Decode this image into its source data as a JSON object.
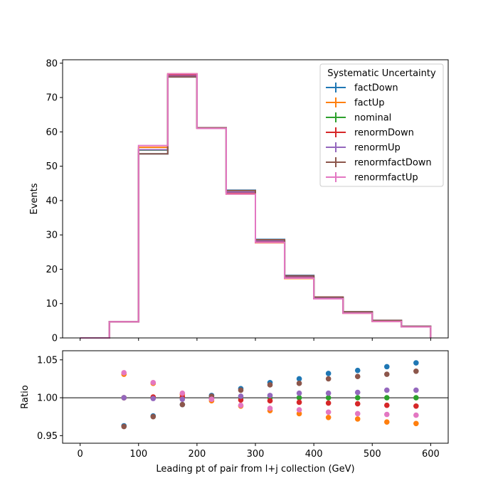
{
  "chart_data": [
    {
      "type": "step",
      "panel": "main",
      "xlabel": "",
      "ylabel": "Events",
      "xlim": [
        -30,
        630
      ],
      "ylim": [
        0,
        81
      ],
      "yticks": [
        0,
        10,
        20,
        30,
        40,
        50,
        60,
        70,
        80
      ],
      "bin_edges": [
        0,
        50,
        100,
        150,
        200,
        250,
        300,
        350,
        400,
        450,
        500,
        550,
        600
      ],
      "legend": {
        "title": "Systematic Uncertainty",
        "placement": "top-right"
      },
      "series": [
        {
          "name": "factDown",
          "color": "#1f77b4",
          "values": [
            0,
            4.7,
            53.6,
            76.0,
            61.2,
            43.0,
            28.7,
            18.2,
            11.9,
            7.6,
            5.1,
            3.4
          ]
        },
        {
          "name": "factUp",
          "color": "#ff7f0e",
          "values": [
            0,
            4.7,
            55.5,
            76.9,
            61.0,
            41.9,
            27.7,
            17.3,
            11.4,
            7.2,
            4.8,
            3.2
          ]
        },
        {
          "name": "nominal",
          "color": "#2ca02c",
          "values": [
            0,
            4.7,
            54.7,
            76.5,
            61.2,
            42.4,
            28.2,
            17.8,
            11.7,
            7.4,
            4.9,
            3.3
          ]
        },
        {
          "name": "renormDown",
          "color": "#d62728",
          "values": [
            0,
            4.7,
            54.8,
            76.6,
            61.1,
            42.3,
            28.1,
            17.6,
            11.6,
            7.3,
            4.9,
            3.3
          ]
        },
        {
          "name": "renormUp",
          "color": "#9467bd",
          "values": [
            0,
            4.7,
            54.8,
            76.3,
            61.2,
            42.5,
            28.3,
            17.9,
            11.8,
            7.5,
            5.0,
            3.3
          ]
        },
        {
          "name": "renormfactDown",
          "color": "#8c564b",
          "values": [
            0,
            4.7,
            53.6,
            76.0,
            61.2,
            42.9,
            28.6,
            18.1,
            11.9,
            7.6,
            5.1,
            3.4
          ]
        },
        {
          "name": "renormfactUp",
          "color": "#e377c2",
          "values": [
            0,
            4.7,
            56.0,
            76.9,
            61.0,
            41.9,
            27.8,
            17.4,
            11.4,
            7.2,
            4.8,
            3.2
          ]
        }
      ]
    },
    {
      "type": "scatter",
      "panel": "ratio",
      "xlabel": "Leading pt of pair from l+j collection (GeV)",
      "ylabel": "Ratio",
      "xlim": [
        -30,
        630
      ],
      "ylim": [
        0.94,
        1.062
      ],
      "xticks": [
        0,
        100,
        200,
        300,
        400,
        500,
        600
      ],
      "yticks": [
        0.95,
        1.0,
        1.05
      ],
      "reference_line": 1.0,
      "x": [
        75,
        125,
        175,
        225,
        275,
        325,
        375,
        425,
        475,
        525,
        575
      ],
      "series": [
        {
          "name": "factDown",
          "color": "#1f77b4",
          "values": [
            0.963,
            0.976,
            0.991,
            1.003,
            1.012,
            1.02,
            1.025,
            1.032,
            1.036,
            1.041,
            1.046
          ]
        },
        {
          "name": "factUp",
          "color": "#ff7f0e",
          "values": [
            1.031,
            1.019,
            1.004,
            0.996,
            0.989,
            0.983,
            0.979,
            0.974,
            0.972,
            0.968,
            0.966
          ]
        },
        {
          "name": "nominal",
          "color": "#2ca02c",
          "values": [
            1.0,
            1.0,
            1.0,
            1.0,
            1.0,
            1.0,
            1.0,
            1.0,
            1.0,
            1.0,
            1.0
          ]
        },
        {
          "name": "renormDown",
          "color": "#d62728",
          "values": [
            1.0,
            1.001,
            1.001,
            0.999,
            0.997,
            0.996,
            0.994,
            0.993,
            0.992,
            0.99,
            0.989
          ]
        },
        {
          "name": "renormUp",
          "color": "#9467bd",
          "values": [
            1.0,
            0.999,
            0.998,
            1.0,
            1.002,
            1.003,
            1.006,
            1.006,
            1.007,
            1.01,
            1.01
          ]
        },
        {
          "name": "renormfactDown",
          "color": "#8c564b",
          "values": [
            0.962,
            0.975,
            0.991,
            1.002,
            1.01,
            1.017,
            1.019,
            1.025,
            1.028,
            1.031,
            1.035
          ]
        },
        {
          "name": "renormfactUp",
          "color": "#e377c2",
          "values": [
            1.033,
            1.02,
            1.006,
            0.998,
            0.99,
            0.986,
            0.984,
            0.981,
            0.979,
            0.978,
            0.977
          ]
        }
      ]
    }
  ]
}
